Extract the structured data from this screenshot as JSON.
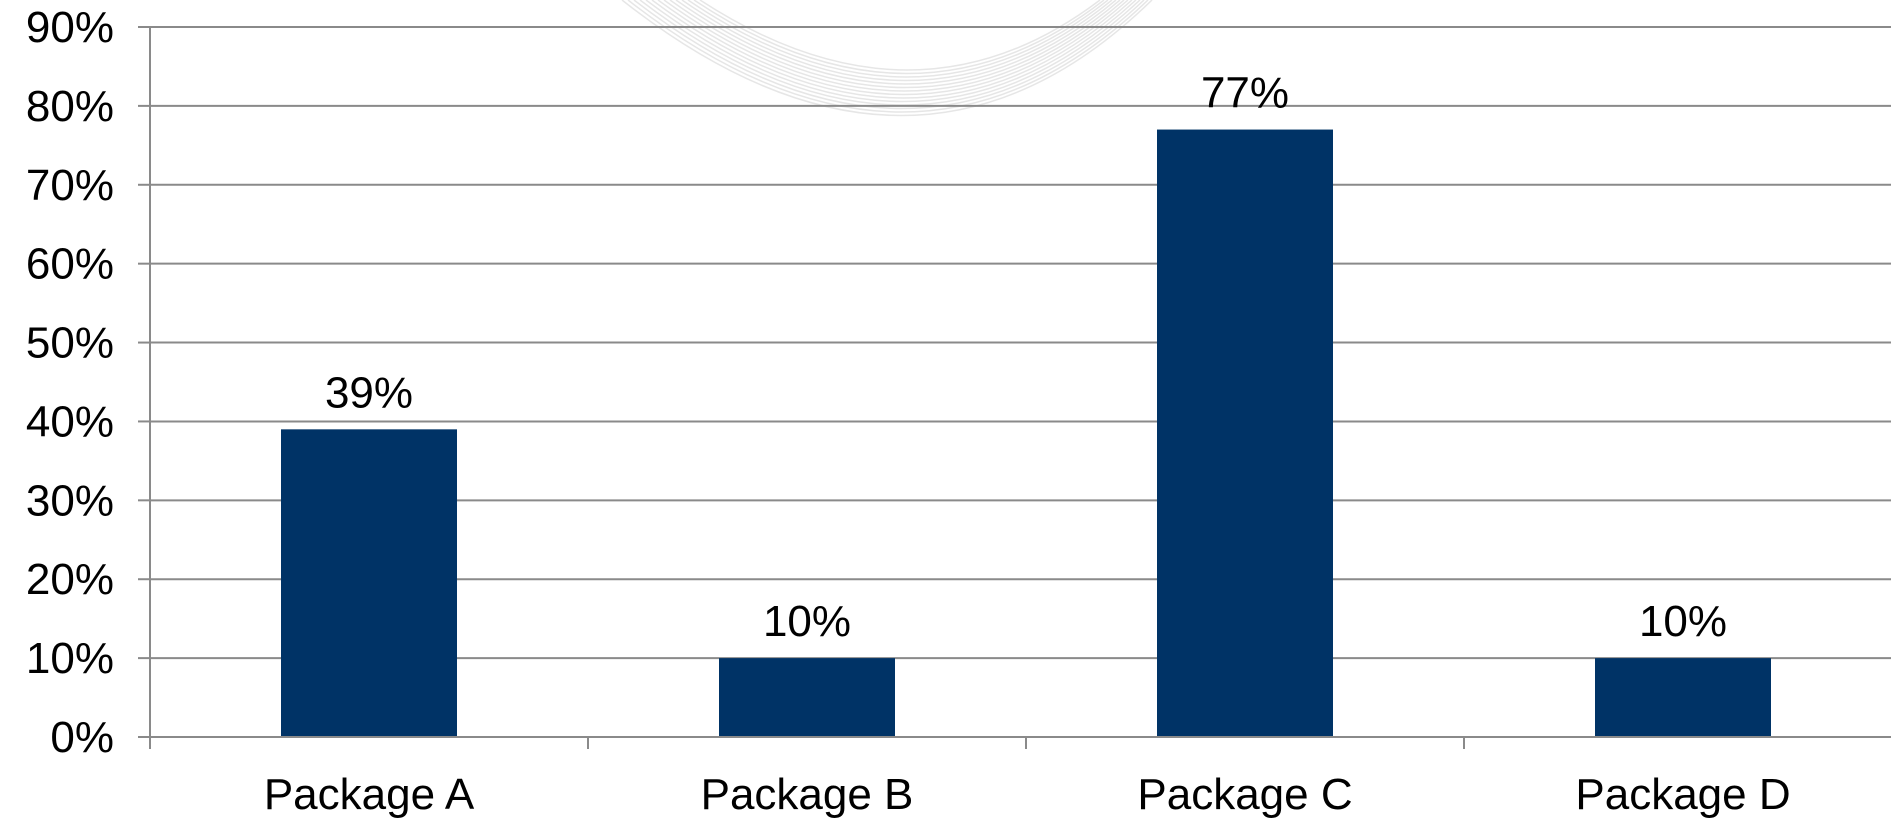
{
  "chart_data": {
    "type": "bar",
    "categories": [
      "Package A",
      "Package B",
      "Package C",
      "Package D"
    ],
    "values": [
      39,
      10,
      77,
      10
    ],
    "data_labels": [
      "39%",
      "10%",
      "77%",
      "10%"
    ],
    "ylim": [
      0,
      90
    ],
    "yticks": [
      0,
      10,
      20,
      30,
      40,
      50,
      60,
      70,
      80,
      90
    ],
    "ytick_labels": [
      "0%",
      "10%",
      "20%",
      "30%",
      "40%",
      "50%",
      "60%",
      "70%",
      "80%",
      "90%"
    ],
    "title": "",
    "xlabel": "",
    "ylabel": "",
    "grid": true,
    "legend": "none",
    "bar_color": "#003366"
  }
}
